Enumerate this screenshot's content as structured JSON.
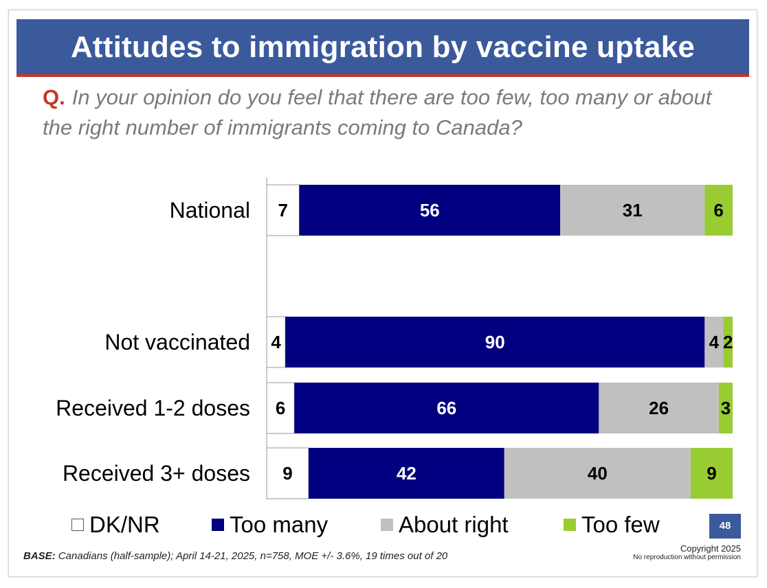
{
  "title": "Attitudes to immigration by vaccine uptake",
  "question": {
    "marker": "Q.",
    "text": "In your opinion do you feel that there are too few, too many or about the right number of immigrants coming to Canada?"
  },
  "chart_data": {
    "type": "bar",
    "orientation": "horizontal",
    "stacked": true,
    "categories": [
      "National",
      "Not vaccinated",
      "Received 1-2 doses",
      "Received 3+ doses"
    ],
    "series": [
      {
        "name": "DK/NR",
        "values": [
          7,
          4,
          6,
          9
        ],
        "color": "#ffffff"
      },
      {
        "name": "Too many",
        "values": [
          56,
          90,
          66,
          42
        ],
        "color": "#000080"
      },
      {
        "name": "About right",
        "values": [
          31,
          4,
          26,
          40
        ],
        "color": "#c0c0c0"
      },
      {
        "name": "Too few",
        "values": [
          6,
          2,
          3,
          9
        ],
        "color": "#99cc33"
      }
    ],
    "legend_position": "bottom",
    "grid": false
  },
  "footer": {
    "base_label": "BASE:",
    "base_text": "Canadians (half-sample); April 14-21, 2025, n=758, MOE +/- 3.6%, 19 times out of 20",
    "copyright": "Copyright 2025",
    "notice": "No reproduction without permission",
    "page_number": "48"
  }
}
